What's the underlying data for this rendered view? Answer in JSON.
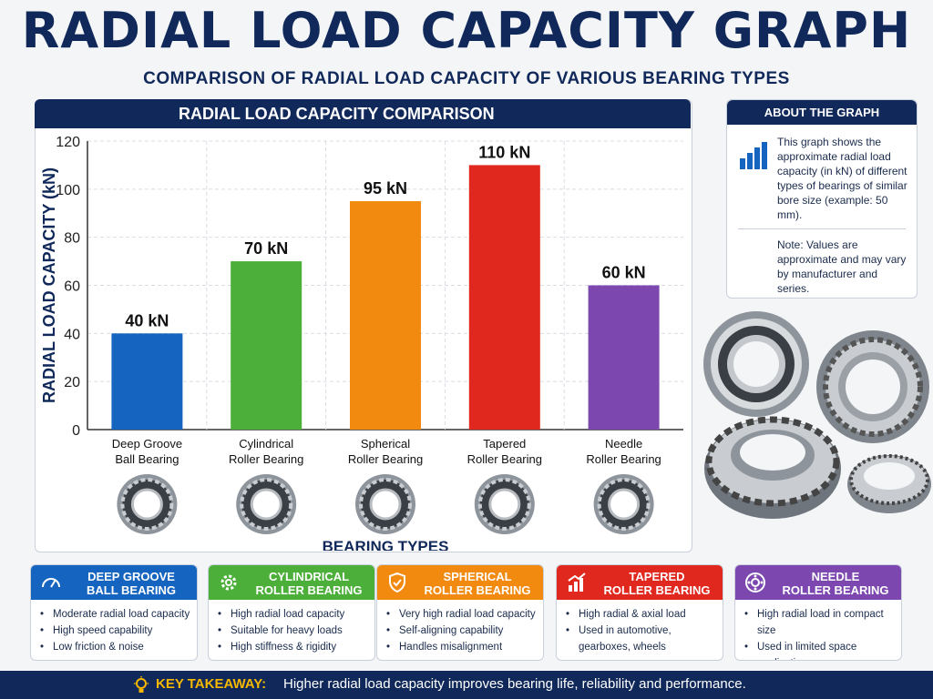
{
  "title": "RADIAL LOAD CAPACITY GRAPH",
  "subtitle": "COMPARISON OF RADIAL LOAD CAPACITY OF VARIOUS BEARING TYPES",
  "chart_panel_title": "RADIAL LOAD CAPACITY COMPARISON",
  "chart_data": {
    "type": "bar",
    "title": "RADIAL LOAD CAPACITY COMPARISON",
    "xlabel": "BEARING TYPES",
    "ylabel": "RADIAL LOAD CAPACITY (kN)",
    "ylim": [
      0,
      120
    ],
    "yticks": [
      0,
      20,
      40,
      60,
      80,
      100,
      120
    ],
    "grid": true,
    "categories": [
      [
        "Deep Groove",
        "Ball Bearing"
      ],
      [
        "Cylindrical",
        "Roller Bearing"
      ],
      [
        "Spherical",
        "Roller Bearing"
      ],
      [
        "Tapered",
        "Roller Bearing"
      ],
      [
        "Needle",
        "Roller Bearing"
      ]
    ],
    "values": [
      40,
      70,
      95,
      110,
      60
    ],
    "data_labels": [
      "40 kN",
      "70 kN",
      "95 kN",
      "110 kN",
      "60 kN"
    ],
    "colors": [
      "#1565c0",
      "#4caf3a",
      "#f28a0f",
      "#e0281f",
      "#7c48b0"
    ]
  },
  "about": {
    "heading": "ABOUT THE GRAPH",
    "icon": "bar-chart-icon",
    "text": "This graph shows the approximate radial load capacity (in kN) of different types of bearings of similar bore size (example: 50 mm).",
    "note": "Note: Values are approximate and may vary by manufacturer and series."
  },
  "cards": [
    {
      "line1": "DEEP GROOVE",
      "line2": "BALL BEARING",
      "color": "#1565c0",
      "icon": "gauge-icon",
      "points": [
        "Moderate radial load capacity",
        "High speed capability",
        "Low friction & noise"
      ]
    },
    {
      "line1": "CYLINDRICAL",
      "line2": "ROLLER BEARING",
      "color": "#4caf3a",
      "icon": "gear-icon",
      "points": [
        "High radial load capacity",
        "Suitable for heavy loads",
        "High stiffness & rigidity"
      ]
    },
    {
      "line1": "SPHERICAL",
      "line2": "ROLLER BEARING",
      "color": "#f28a0f",
      "icon": "shield-icon",
      "points": [
        "Very high radial load capacity",
        "Self-aligning capability",
        "Handles misalignment"
      ]
    },
    {
      "line1": "TAPERED",
      "line2": "ROLLER BEARING",
      "color": "#e0281f",
      "icon": "trend-up-icon",
      "points": [
        "High radial & axial load",
        "Used in automotive, gearboxes, wheels"
      ]
    },
    {
      "line1": "NEEDLE",
      "line2": "ROLLER BEARING",
      "color": "#7c48b0",
      "icon": "bearing-icon",
      "points": [
        "High radial load in compact size",
        "Used in limited space applications"
      ]
    }
  ],
  "takeaway": {
    "label": "KEY TAKEAWAY:",
    "text": "Higher radial load capacity improves bearing life, reliability and performance.",
    "icon": "lightbulb-icon"
  }
}
